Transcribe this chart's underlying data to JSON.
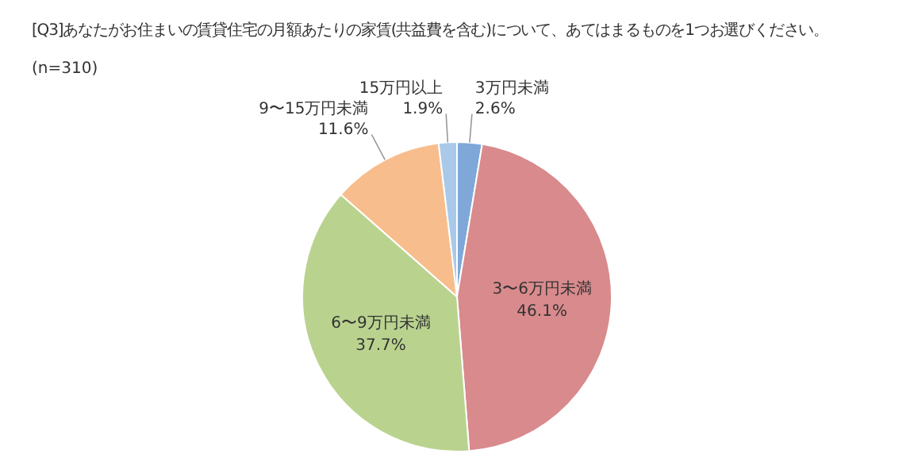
{
  "chart_data": {
    "type": "pie",
    "title": "[Q3]あなたがお住まいの賃貸住宅の月額あたりの家賃(共益費を含む)について、あてはまるものを1つお選びください。",
    "subtitle": "(n=310)",
    "categories": [
      "3万円未満",
      "3〜6万円未満",
      "6〜9万円未満",
      "9〜15万円未満",
      "15万円以上"
    ],
    "values": [
      2.6,
      46.1,
      37.7,
      11.6,
      1.9
    ],
    "value_labels": [
      "2.6%",
      "46.1%",
      "37.7%",
      "11.6%",
      "1.9%"
    ],
    "colors": [
      "#7fa8d8",
      "#d98a8c",
      "#b9d38f",
      "#f8bd8c",
      "#a9c9e8"
    ],
    "legend": false
  }
}
